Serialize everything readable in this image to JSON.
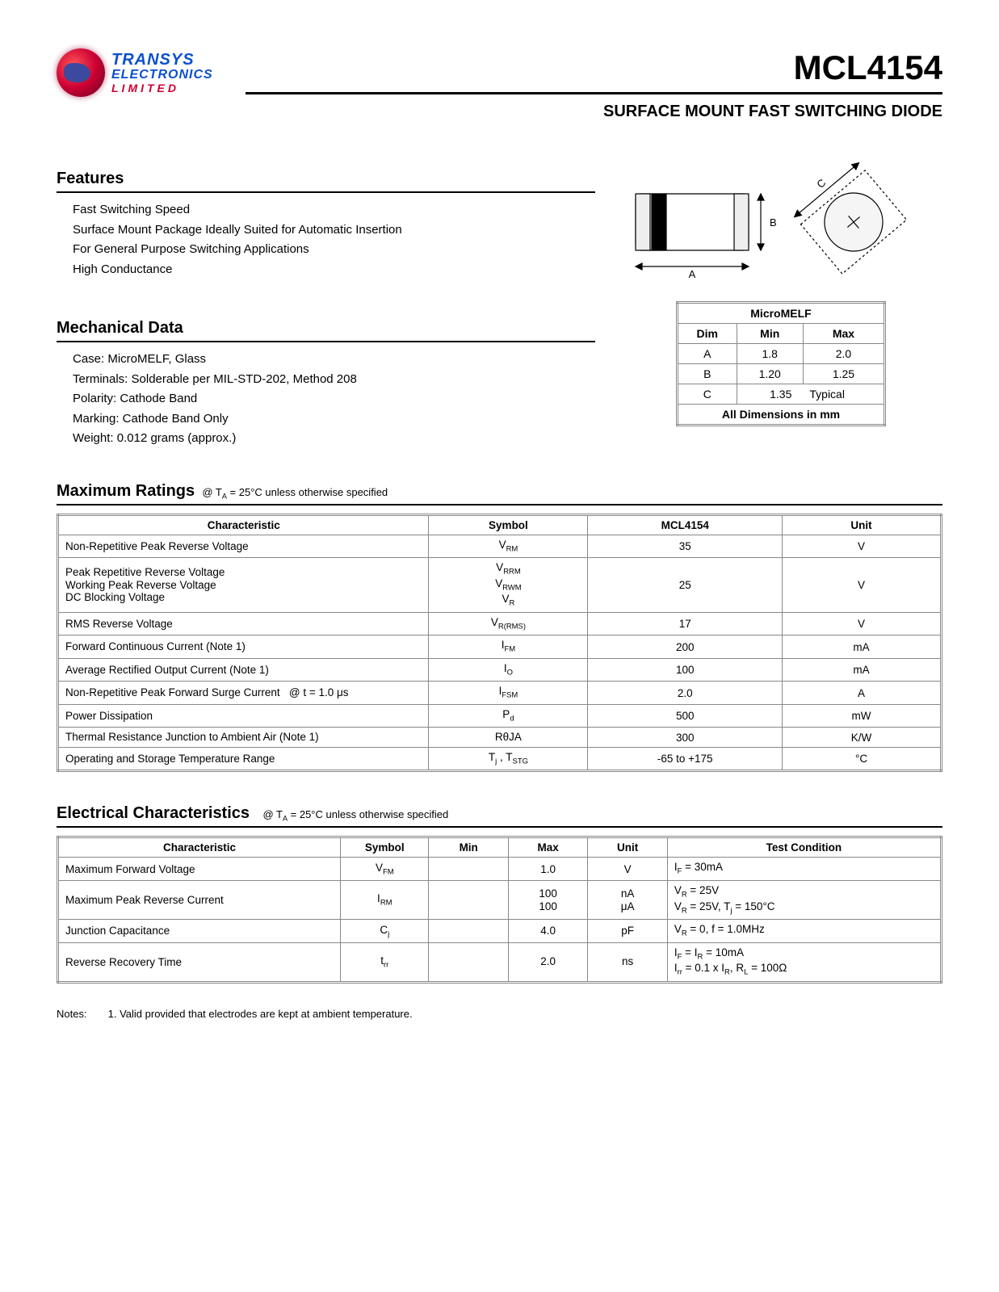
{
  "logo": {
    "l1": "TRANSYS",
    "l2": "ELECTRONICS",
    "l3": "LIMITED"
  },
  "part_number": "MCL4154",
  "subtitle": "SURFACE MOUNT FAST SWITCHING DIODE",
  "features": {
    "title": "Features",
    "items": [
      "Fast Switching Speed",
      "Surface Mount Package Ideally Suited for Automatic Insertion",
      "For General Purpose Switching Applications",
      "High Conductance"
    ]
  },
  "mechanical": {
    "title": "Mechanical Data",
    "items": [
      "Case: MicroMELF, Glass",
      "Terminals: Solderable per MIL-STD-202, Method 208",
      "Polarity: Cathode Band",
      "Marking: Cathode Band Only",
      "Weight: 0.012 grams (approx.)"
    ]
  },
  "dim_table": {
    "title": "MicroMELF",
    "headers": [
      "Dim",
      "Min",
      "Max"
    ],
    "rows": [
      [
        "A",
        "1.8",
        "2.0"
      ],
      [
        "B",
        "1.20",
        "1.25"
      ]
    ],
    "row_c": {
      "dim": "C",
      "val": "1.35",
      "note": "Typical"
    },
    "footer": "All Dimensions in mm"
  },
  "ratings": {
    "title": "Maximum Ratings",
    "cond": "@ T",
    "cond_sub": "A",
    "cond_rest": " = 25°C unless otherwise specified",
    "headers": [
      "Characteristic",
      "Symbol",
      "MCL4154",
      "Unit"
    ],
    "rows": [
      {
        "char": "Non-Repetitive Peak Reverse Voltage",
        "sym": "V<sub>RM</sub>",
        "val": "35",
        "unit": "V"
      },
      {
        "char": "Peak Repetitive Reverse Voltage<br>Working Peak Reverse Voltage<br>DC Blocking Voltage",
        "sym": "V<sub>RRM</sub><br>V<sub>RWM</sub><br>V<sub>R</sub>",
        "val": "25",
        "unit": "V"
      },
      {
        "char": "RMS Reverse Voltage",
        "sym": "V<sub>R(RMS)</sub>",
        "val": "17",
        "unit": "V"
      },
      {
        "char": "Forward Continuous Current (Note 1)",
        "sym": "I<sub>FM</sub>",
        "val": "200",
        "unit": "mA"
      },
      {
        "char": "Average Rectified Output Current (Note 1)",
        "sym": "I<sub>O</sub>",
        "val": "100",
        "unit": "mA"
      },
      {
        "char": "Non-Repetitive Peak Forward Surge Current &nbsp; @ t = 1.0 μs",
        "sym": "I<sub>FSM</sub>",
        "val": "2.0",
        "unit": "A"
      },
      {
        "char": "Power Dissipation",
        "sym": "P<sub>d</sub>",
        "val": "500",
        "unit": "mW"
      },
      {
        "char": "Thermal Resistance Junction to Ambient Air (Note 1)",
        "sym": "RθJA",
        "val": "300",
        "unit": "K/W"
      },
      {
        "char": "Operating and Storage Temperature Range",
        "sym": "T<sub>j</sub> , T<sub>STG</sub>",
        "val": "-65 to +175",
        "unit": "°C"
      }
    ]
  },
  "electrical": {
    "title": "Electrical Characteristics",
    "cond": "@ T",
    "cond_sub": "A",
    "cond_rest": " = 25°C unless otherwise specified",
    "headers": [
      "Characteristic",
      "Symbol",
      "Min",
      "Max",
      "Unit",
      "Test Condition"
    ],
    "rows": [
      {
        "char": "Maximum Forward Voltage",
        "sym": "V<sub>FM</sub>",
        "min": "",
        "max": "1.0",
        "unit": "V",
        "tc": "I<sub>F</sub> = 30mA"
      },
      {
        "char": "Maximum Peak Reverse Current",
        "sym": "I<sub>RM</sub>",
        "min": "",
        "max": "100<br>100",
        "unit": "nA<br>μA",
        "tc": "V<sub>R</sub> = 25V<br>V<sub>R</sub> = 25V, T<sub>j</sub> = 150°C"
      },
      {
        "char": "Junction Capacitance",
        "sym": "C<sub>j</sub>",
        "min": "",
        "max": "4.0",
        "unit": "pF",
        "tc": "V<sub>R</sub> = 0, f = 1.0MHz"
      },
      {
        "char": "Reverse Recovery Time",
        "sym": "t<sub>rr</sub>",
        "min": "",
        "max": "2.0",
        "unit": "ns",
        "tc": "I<sub>F</sub> = I<sub>R</sub> = 10mA<br>I<sub>rr</sub> = 0.1 x I<sub>R</sub>, R<sub>L</sub> = 100Ω"
      }
    ]
  },
  "notes": {
    "label": "Notes:",
    "text": "1. Valid provided that electrodes are kept at ambient temperature."
  }
}
